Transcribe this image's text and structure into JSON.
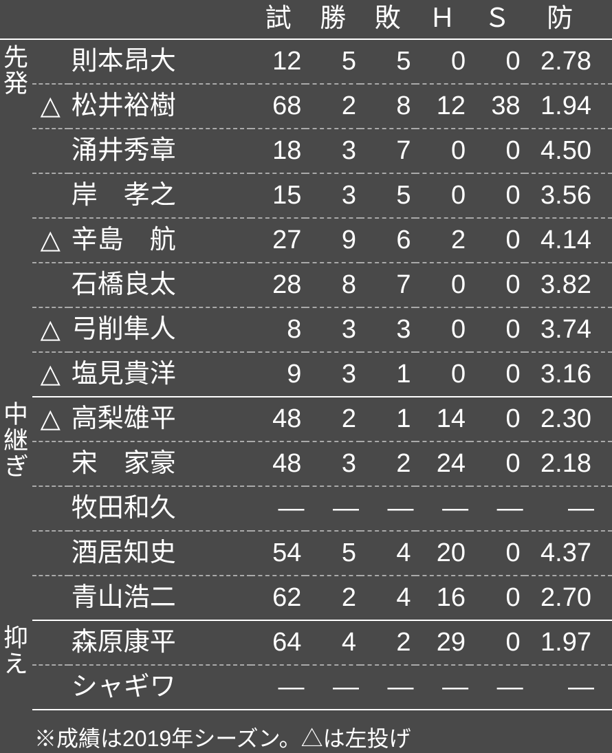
{
  "colors": {
    "background": "#494949",
    "text": "#ffffff",
    "solid_rule": "#ffffff",
    "dashed_rule": "#aaaaaa"
  },
  "columns": {
    "games": "試",
    "wins": "勝",
    "losses": "敗",
    "holds": "Ｈ",
    "saves": "Ｓ",
    "era": "防"
  },
  "sections": [
    {
      "label": "先発",
      "rows": [
        {
          "mark": "",
          "name": "則本昂大",
          "g": "12",
          "w": "5",
          "l": "5",
          "h": "0",
          "s": "0",
          "era": "2.78"
        },
        {
          "mark": "△",
          "name": "松井裕樹",
          "g": "68",
          "w": "2",
          "l": "8",
          "h": "12",
          "s": "38",
          "era": "1.94"
        },
        {
          "mark": "",
          "name": "涌井秀章",
          "g": "18",
          "w": "3",
          "l": "7",
          "h": "0",
          "s": "0",
          "era": "4.50"
        },
        {
          "mark": "",
          "name": "岸　孝之",
          "g": "15",
          "w": "3",
          "l": "5",
          "h": "0",
          "s": "0",
          "era": "3.56"
        },
        {
          "mark": "△",
          "name": "辛島　航",
          "g": "27",
          "w": "9",
          "l": "6",
          "h": "2",
          "s": "0",
          "era": "4.14"
        },
        {
          "mark": "",
          "name": "石橋良太",
          "g": "28",
          "w": "8",
          "l": "7",
          "h": "0",
          "s": "0",
          "era": "3.82"
        },
        {
          "mark": "△",
          "name": "弓削隼人",
          "g": "8",
          "w": "3",
          "l": "3",
          "h": "0",
          "s": "0",
          "era": "3.74"
        },
        {
          "mark": "△",
          "name": "塩見貴洋",
          "g": "9",
          "w": "3",
          "l": "1",
          "h": "0",
          "s": "0",
          "era": "3.16"
        }
      ]
    },
    {
      "label": "中継ぎ",
      "rows": [
        {
          "mark": "△",
          "name": "高梨雄平",
          "g": "48",
          "w": "2",
          "l": "1",
          "h": "14",
          "s": "0",
          "era": "2.30"
        },
        {
          "mark": "",
          "name": "宋　家豪",
          "g": "48",
          "w": "3",
          "l": "2",
          "h": "24",
          "s": "0",
          "era": "2.18"
        },
        {
          "mark": "",
          "name": "牧田和久",
          "g": "—",
          "w": "—",
          "l": "—",
          "h": "—",
          "s": "—",
          "era": "—"
        },
        {
          "mark": "",
          "name": "酒居知史",
          "g": "54",
          "w": "5",
          "l": "4",
          "h": "20",
          "s": "0",
          "era": "4.37"
        },
        {
          "mark": "",
          "name": "青山浩二",
          "g": "62",
          "w": "2",
          "l": "4",
          "h": "16",
          "s": "0",
          "era": "2.70"
        }
      ]
    },
    {
      "label": "抑え",
      "rows": [
        {
          "mark": "",
          "name": "森原康平",
          "g": "64",
          "w": "4",
          "l": "2",
          "h": "29",
          "s": "0",
          "era": "1.97"
        },
        {
          "mark": "",
          "name": "シャギワ",
          "g": "—",
          "w": "—",
          "l": "—",
          "h": "—",
          "s": "—",
          "era": "—"
        }
      ]
    }
  ],
  "footnote": "※成績は2019年シーズン。△は左投げ"
}
